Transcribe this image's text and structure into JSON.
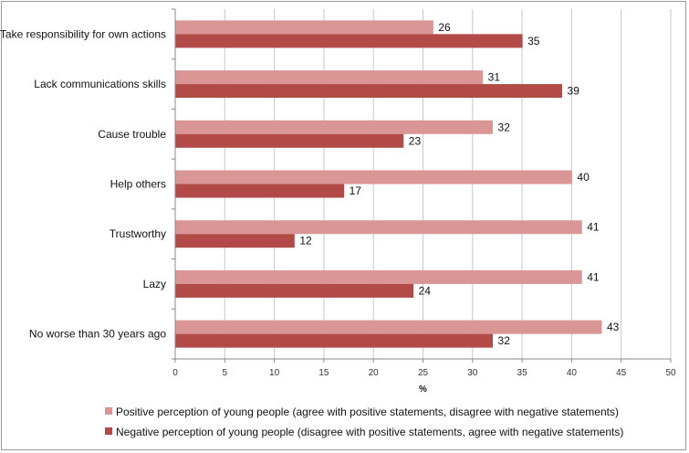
{
  "chart_data": {
    "type": "bar",
    "orientation": "horizontal",
    "categories": [
      "Take responsibility for own actions",
      "Lack communications skills",
      "Cause trouble",
      "Help others",
      "Trustworthy",
      "Lazy",
      "No worse than 30 years ago"
    ],
    "series": [
      {
        "name": "Positive perception of young people (agree with positive statements, disagree with negative statements)",
        "color": "#d99694",
        "values": [
          26,
          31,
          32,
          40,
          41,
          41,
          43
        ]
      },
      {
        "name": "Negative perception of young people (disagree with positive statements, agree with negative statements)",
        "color": "#b24a48",
        "values": [
          35,
          39,
          23,
          17,
          12,
          24,
          32
        ]
      }
    ],
    "xlabel": "%",
    "xlim": [
      0,
      50
    ],
    "xticks": [
      0,
      5,
      10,
      15,
      20,
      25,
      30,
      35,
      40,
      45,
      50
    ],
    "grid": true,
    "legend_position": "bottom",
    "data_labels": true
  }
}
